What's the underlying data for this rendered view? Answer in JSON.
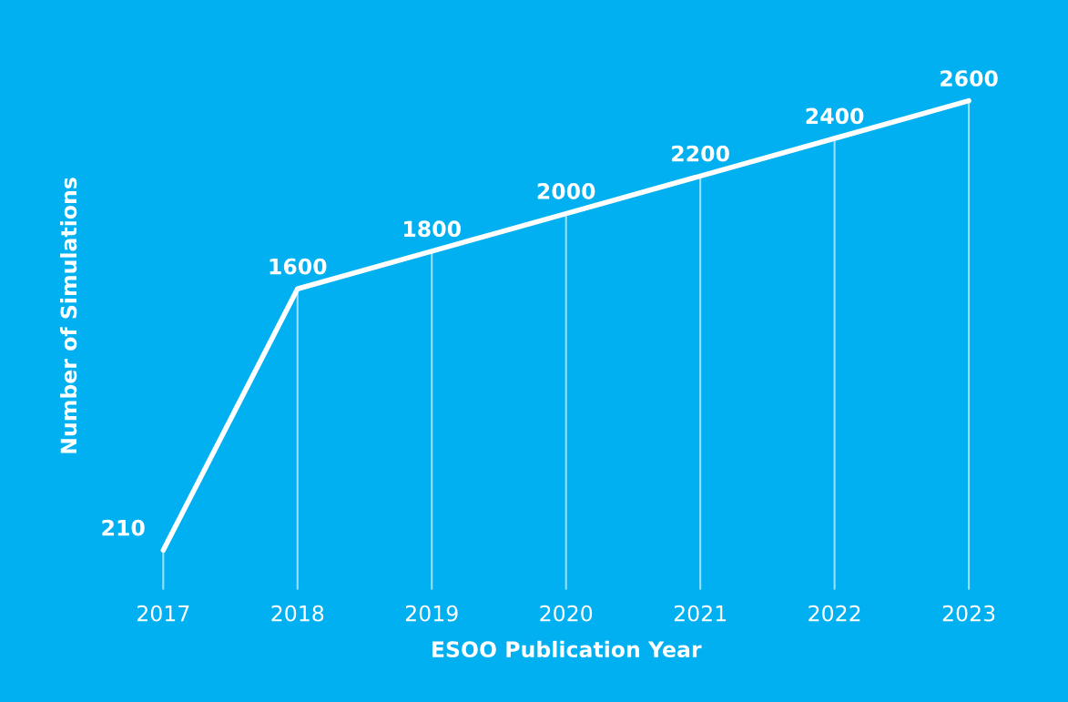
{
  "chart_data": {
    "type": "line",
    "xlabel": "ESOO Publication Year",
    "ylabel": "Number of Simulations",
    "categories": [
      "2017",
      "2018",
      "2019",
      "2020",
      "2021",
      "2022",
      "2023"
    ],
    "series": [
      {
        "color": "#ffffff",
        "values": [
          210,
          1600,
          1800,
          2000,
          2200,
          2400,
          2600
        ]
      }
    ],
    "data_labels": true,
    "grid": "x",
    "legend": false,
    "marker": "none",
    "line_style": "solid",
    "tick_labels": "x"
  }
}
